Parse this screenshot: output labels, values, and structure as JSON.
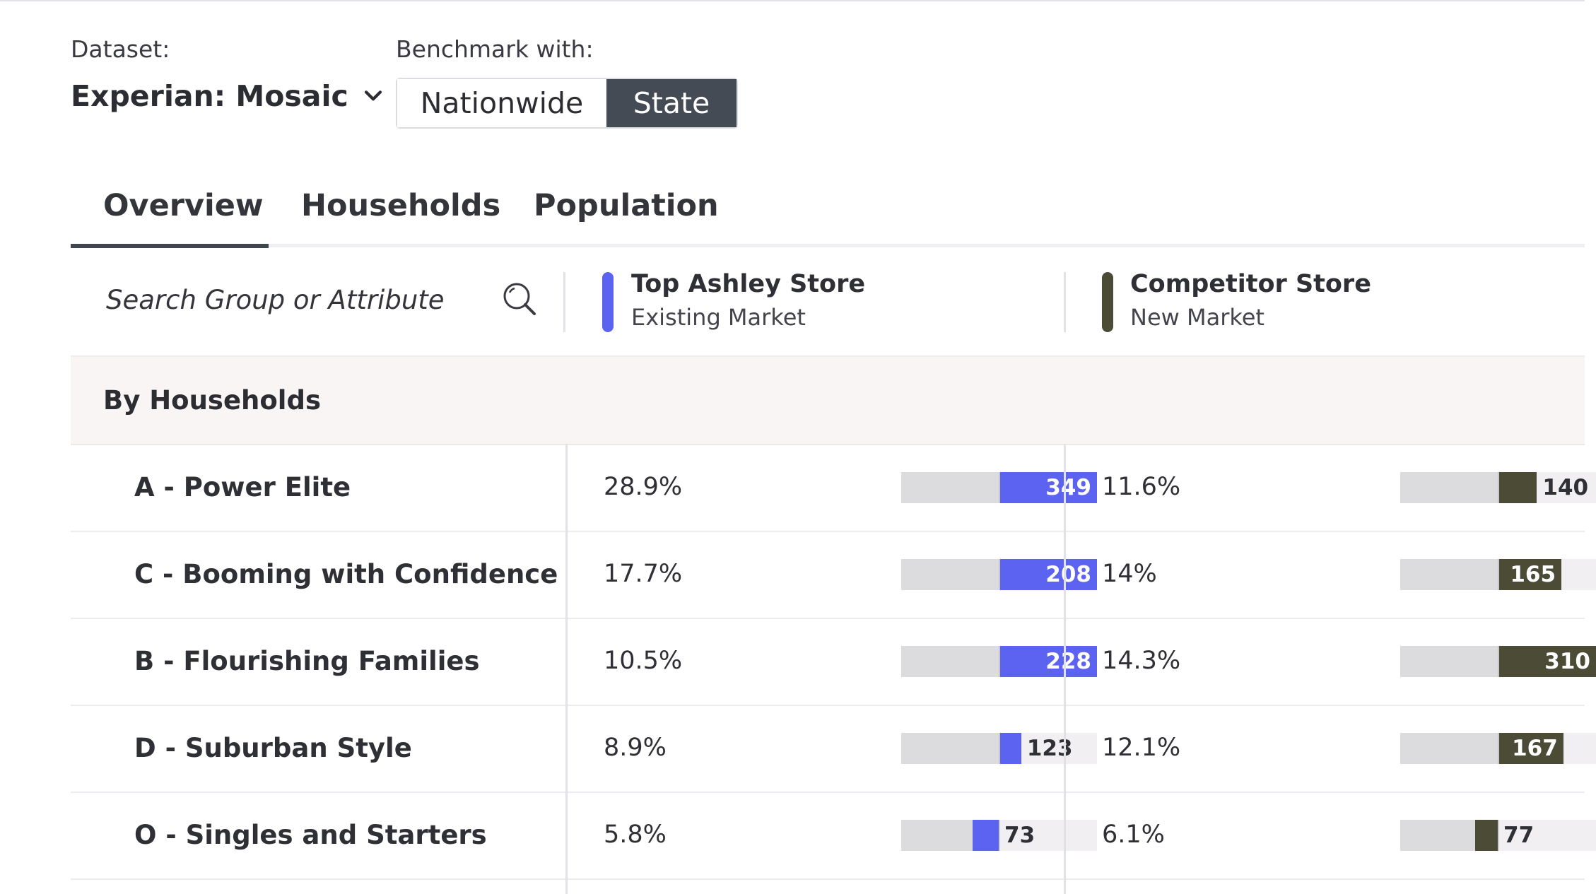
{
  "controls": {
    "dataset_label": "Dataset:",
    "dataset_value": "Experian: Mosaic",
    "benchmark_label": "Benchmark with:",
    "benchmark_options": [
      "Nationwide",
      "State"
    ],
    "benchmark_selected": "State"
  },
  "tabs": [
    "Overview",
    "Households",
    "Population"
  ],
  "active_tab": "Overview",
  "search": {
    "placeholder": "Search Group or Attribute"
  },
  "stores": [
    {
      "name": "Top Ashley Store",
      "subtitle": "Existing Market",
      "color": "#5b63f0"
    },
    {
      "name": "Competitor Store",
      "subtitle": "New Market",
      "color": "#4c4c36"
    }
  ],
  "section_title": "By Households",
  "rows": [
    {
      "name": "A - Power Elite",
      "store1_pct": "28.9%",
      "store1_index": 349,
      "store2_pct": "11.6%",
      "store2_index": 140
    },
    {
      "name": "C - Booming with Confidence",
      "store1_pct": "17.7%",
      "store1_index": 208,
      "store2_pct": "14%",
      "store2_index": 165
    },
    {
      "name": "B - Flourishing Families",
      "store1_pct": "10.5%",
      "store1_index": 228,
      "store2_pct": "14.3%",
      "store2_index": 310
    },
    {
      "name": "D - Suburban Style",
      "store1_pct": "8.9%",
      "store1_index": 123,
      "store2_pct": "12.1%",
      "store2_index": 167
    },
    {
      "name": "O - Singles and Starters",
      "store1_pct": "5.8%",
      "store1_index": 73,
      "store2_pct": "6.1%",
      "store2_index": 77
    }
  ]
}
